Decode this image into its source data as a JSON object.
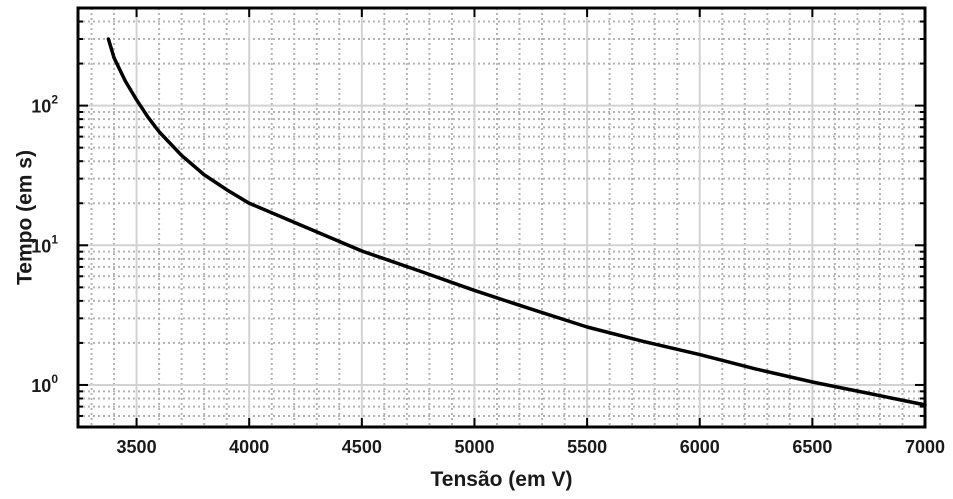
{
  "chart_data": {
    "type": "line",
    "xlabel": "Tensão (em V)",
    "ylabel": "Tempo (em s)",
    "xlim": [
      3240,
      7000
    ],
    "ylim": [
      0.5,
      500
    ],
    "y_scale": "log",
    "grid": true,
    "x_ticks": [
      3500,
      4000,
      4500,
      5000,
      5500,
      6000,
      6500,
      7000
    ],
    "x_tick_labels": [
      "3500",
      "4000",
      "4500",
      "5000",
      "5500",
      "6000",
      "6500",
      "7000"
    ],
    "y_ticks": [
      {
        "value": 1,
        "base": "10",
        "exp": "0"
      },
      {
        "value": 10,
        "base": "10",
        "exp": "1"
      },
      {
        "value": 100,
        "base": "10",
        "exp": "2"
      }
    ],
    "series": [
      {
        "color": "#000000",
        "x": [
          3375,
          3400,
          3450,
          3500,
          3550,
          3600,
          3700,
          3800,
          3900,
          4000,
          4250,
          4500,
          4750,
          5000,
          5250,
          5500,
          5750,
          6000,
          6250,
          6500,
          6750,
          7000
        ],
        "y": [
          300,
          220,
          150,
          110,
          83,
          65,
          44,
          32,
          25,
          20,
          13.5,
          9.1,
          6.6,
          4.75,
          3.5,
          2.6,
          2.05,
          1.65,
          1.3,
          1.05,
          0.87,
          0.72
        ]
      }
    ]
  }
}
